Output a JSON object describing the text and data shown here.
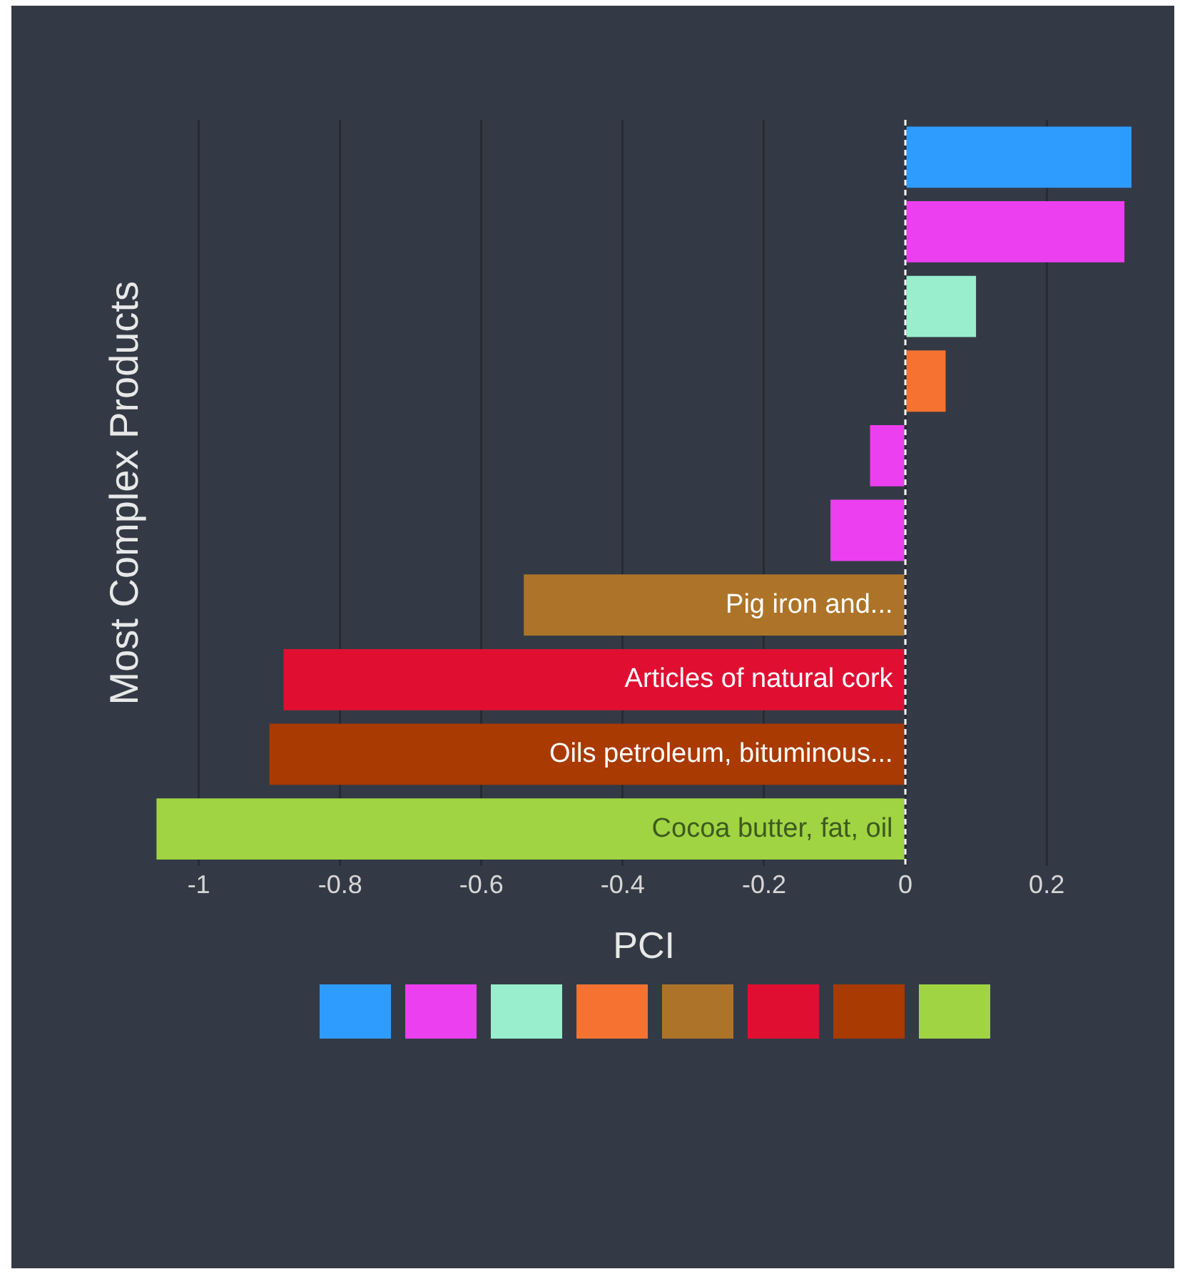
{
  "chart_data": {
    "type": "bar",
    "orientation": "horizontal",
    "xlabel": "PCI",
    "ylabel": "Most Complex Products",
    "categories": [
      null,
      null,
      null,
      null,
      null,
      null,
      "Pig iron and...",
      "Articles of natural cork",
      "Oils petroleum, bituminous...",
      "Cocoa butter, fat, oil"
    ],
    "values": [
      0.32,
      0.31,
      0.1,
      0.057,
      -0.05,
      -0.106,
      -0.54,
      -0.88,
      -0.9,
      -1.06
    ],
    "colors": [
      "#2e9bff",
      "#ec3ff0",
      "#98eecd",
      "#f57231",
      "#ec3ff0",
      "#ec3ff0",
      "#ad7429",
      "#e00f32",
      "#a93a02",
      "#a0d443"
    ],
    "xlim": [
      -1.06,
      0.32
    ],
    "xticks": [
      -1,
      -0.8,
      -0.6,
      -0.4,
      -0.2,
      0,
      0.2
    ],
    "grid": "x",
    "tick_labels": "x",
    "ref_lines": [
      {
        "axis": "x",
        "value": 0,
        "color": "#ffffff",
        "line_style": "dashed"
      }
    ]
  }
}
